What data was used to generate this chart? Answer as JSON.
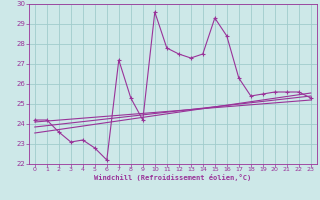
{
  "xlabel": "Windchill (Refroidissement éolien,°C)",
  "bg_color": "#cde8e8",
  "grid_color": "#a0cccc",
  "line_color": "#993399",
  "xlim": [
    -0.5,
    23.5
  ],
  "ylim": [
    22,
    30
  ],
  "yticks": [
    22,
    23,
    24,
    25,
    26,
    27,
    28,
    29,
    30
  ],
  "xticks": [
    0,
    1,
    2,
    3,
    4,
    5,
    6,
    7,
    8,
    9,
    10,
    11,
    12,
    13,
    14,
    15,
    16,
    17,
    18,
    19,
    20,
    21,
    22,
    23
  ],
  "series1_x": [
    0,
    1,
    2,
    3,
    4,
    5,
    6,
    7,
    8,
    9,
    10,
    11,
    12,
    13,
    14,
    15,
    16,
    17,
    18,
    19,
    20,
    21,
    22,
    23
  ],
  "series1_y": [
    24.2,
    24.2,
    23.6,
    23.1,
    23.2,
    22.8,
    22.2,
    27.2,
    25.3,
    24.2,
    29.6,
    27.8,
    27.5,
    27.3,
    27.5,
    29.3,
    28.4,
    26.3,
    25.4,
    25.5,
    25.6,
    25.6,
    25.6,
    25.3
  ],
  "series2_x": [
    0,
    23
  ],
  "series2_y": [
    24.1,
    25.2
  ],
  "series3_x": [
    0,
    23
  ],
  "series3_y": [
    23.85,
    25.4
  ],
  "series4_x": [
    0,
    23
  ],
  "series4_y": [
    23.55,
    25.55
  ]
}
